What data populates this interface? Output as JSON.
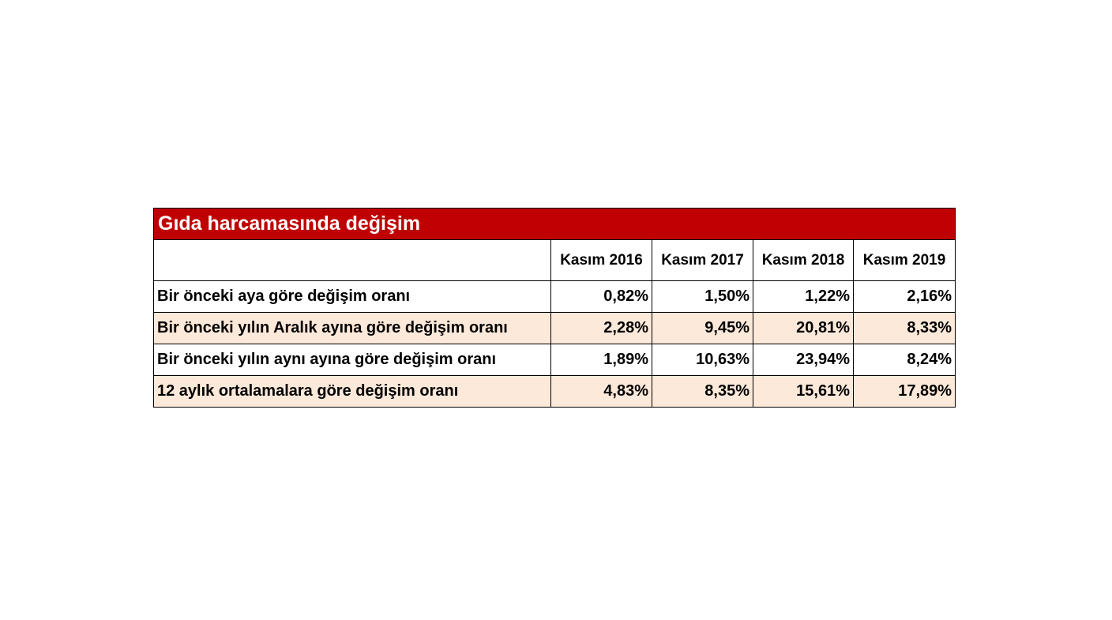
{
  "table": {
    "title": "Gıda harcamasında değişim",
    "columns": [
      "",
      "Kasım 2016",
      "Kasım 2017",
      "Kasım 2018",
      "Kasım 2019"
    ],
    "rows": [
      {
        "label": "Bir önceki aya göre değişim oranı",
        "values": [
          "0,82%",
          "1,50%",
          "1,22%",
          "2,16%"
        ]
      },
      {
        "label": "Bir önceki yılın Aralık ayına göre değişim oranı",
        "values": [
          "2,28%",
          "9,45%",
          "20,81%",
          "8,33%"
        ]
      },
      {
        "label": "Bir önceki yılın aynı ayına göre değişim oranı",
        "values": [
          "1,89%",
          "10,63%",
          "23,94%",
          "8,24%"
        ]
      },
      {
        "label": "12 aylık ortalamalara göre değişim oranı",
        "values": [
          "4,83%",
          "8,35%",
          "15,61%",
          "17,89%"
        ]
      }
    ],
    "colors": {
      "title_background": "#c00000",
      "title_text": "#ffffff",
      "shaded_row": "#fde9d9",
      "border": "#000000"
    }
  }
}
